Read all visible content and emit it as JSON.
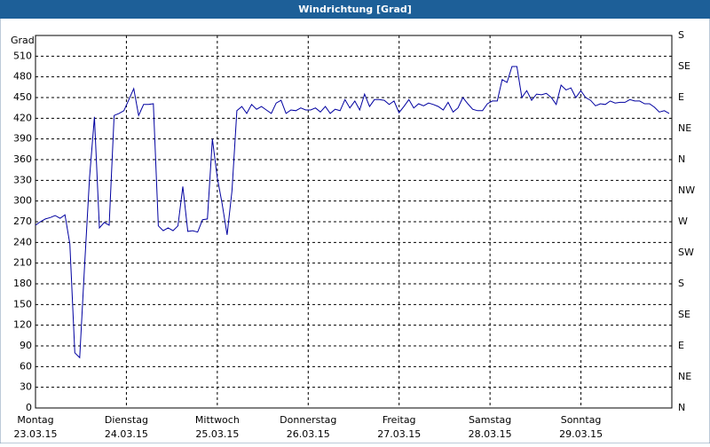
{
  "chart_data": {
    "type": "line",
    "title": "Windrichtung [Grad]",
    "y_label": "Grad",
    "ylim": [
      0,
      540
    ],
    "yticks": [
      0,
      30,
      60,
      90,
      120,
      150,
      180,
      210,
      240,
      270,
      300,
      330,
      360,
      390,
      420,
      450,
      480,
      510
    ],
    "y2lim": [
      0,
      540
    ],
    "y2ticks": [
      {
        "value": 0,
        "label": "N"
      },
      {
        "value": 45,
        "label": "NE"
      },
      {
        "value": 90,
        "label": "E"
      },
      {
        "value": 135,
        "label": "SE"
      },
      {
        "value": 180,
        "label": "S"
      },
      {
        "value": 225,
        "label": "SW"
      },
      {
        "value": 270,
        "label": "W"
      },
      {
        "value": 315,
        "label": "NW"
      },
      {
        "value": 360,
        "label": "N"
      },
      {
        "value": 405,
        "label": "NE"
      },
      {
        "value": 450,
        "label": "E"
      },
      {
        "value": 495,
        "label": "SE"
      },
      {
        "value": 540,
        "label": "S"
      }
    ],
    "days": [
      {
        "name": "Montag",
        "date": "23.03.15"
      },
      {
        "name": "Dienstag",
        "date": "24.03.15"
      },
      {
        "name": "Mittwoch",
        "date": "25.03.15"
      },
      {
        "name": "Donnerstag",
        "date": "26.03.15"
      },
      {
        "name": "Freitag",
        "date": "27.03.15"
      },
      {
        "name": "Samstag",
        "date": "28.03.15"
      },
      {
        "name": "Sonntag",
        "date": "29.03.15"
      }
    ],
    "grid": true,
    "color": "#0000a0",
    "values": [
      265,
      270,
      274,
      276,
      279,
      275,
      280,
      238,
      80,
      73,
      206,
      334,
      422,
      261,
      269,
      265,
      424,
      427,
      431,
      447,
      463,
      424,
      440,
      440,
      441,
      264,
      257,
      261,
      257,
      264,
      321,
      256,
      257,
      255,
      273,
      274,
      390,
      334,
      296,
      251,
      315,
      431,
      437,
      427,
      440,
      433,
      437,
      432,
      427,
      442,
      446,
      427,
      432,
      431,
      435,
      432,
      432,
      435,
      429,
      437,
      427,
      433,
      431,
      447,
      435,
      445,
      432,
      455,
      437,
      447,
      447,
      446,
      440,
      445,
      428,
      437,
      447,
      435,
      441,
      438,
      442,
      440,
      437,
      432,
      443,
      429,
      435,
      450,
      441,
      433,
      431,
      431,
      441,
      445,
      445,
      476,
      472,
      495,
      495,
      450,
      460,
      446,
      455,
      454,
      456,
      450,
      440,
      468,
      461,
      464,
      450,
      460,
      450,
      446,
      438,
      441,
      440,
      445,
      442,
      443,
      443,
      447,
      445,
      445,
      441,
      441,
      436,
      429,
      431,
      427
    ]
  }
}
